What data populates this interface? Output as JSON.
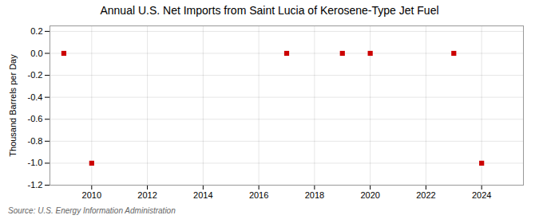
{
  "chart_data": {
    "type": "scatter",
    "title": "Annual U.S. Net Imports from Saint Lucia of Kerosene-Type Jet Fuel",
    "ylabel": "Thousand Barrels per Day",
    "source": "Source: U.S. Energy Information Administration",
    "x": [
      2009,
      2010,
      2017,
      2019,
      2020,
      2023,
      2024
    ],
    "values": [
      0,
      -1,
      0,
      0,
      0,
      0,
      -1
    ],
    "color": "#cc0000",
    "marker": "square",
    "xlim": [
      2008.5,
      2025.5
    ],
    "ylim": [
      -1.2,
      0.25
    ],
    "xticks": [
      2010,
      2012,
      2014,
      2016,
      2018,
      2020,
      2022,
      2024
    ],
    "yticks": [
      0.2,
      {
        "value": 0,
        "label": "0.0"
      },
      -0.2,
      -0.4,
      -0.6,
      -0.8,
      {
        "value": -1,
        "label": "-1.0"
      },
      -1.2
    ],
    "grid": true
  }
}
